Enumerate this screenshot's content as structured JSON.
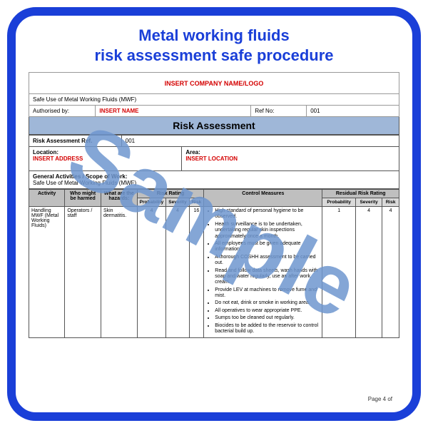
{
  "title_line1": "Metal working fluids",
  "title_line2": "risk assessment safe procedure",
  "header": {
    "company_placeholder": "INSERT COMPANY NAME/LOGO",
    "doc_title": "Safe Use of Metal Working Fluids (MWF)",
    "authorised_label": "Authorised by:",
    "authorised_value": "INSERT NAME",
    "ref_label": "Ref No:",
    "ref_value": "001"
  },
  "banner": "Risk Assessment",
  "meta": {
    "ra_ref_label": "Risk Assessment Ref.",
    "ra_ref_value": "001",
    "location_label": "Location:",
    "location_value": "INSERT ADDRESS",
    "area_label": "Area:",
    "area_value": "INSERT LOCATION",
    "scope_label": "General Activities / Scope of Work:",
    "scope_value": "Safe Use of Metal Working Fluids (MWF)"
  },
  "columns": {
    "activity": "Activity",
    "who": "Who might be harmed",
    "hazards": "What are the hazards:",
    "risk_rating": "Risk Rating",
    "measures": "Control Measures",
    "residual": "Residual Risk Rating",
    "prob": "Probability",
    "sev": "Severity",
    "risk": "Risk"
  },
  "row": {
    "activity": "Handling MWF (Metal Working Fluids)",
    "who": "Operators / staff",
    "hazard": "Skin dermatitis.",
    "p1": "4",
    "s1": "4",
    "r1": "16",
    "p2": "1",
    "s2": "4",
    "r2": "4",
    "bullets": [
      "High standard of personal hygiene to be observed.",
      "Health surveillance is to be undertaken, undertaking regular skin inspections approximately once a month.",
      "All employees must be given adequate information.",
      "A thorough COSHH assessment to be carried out.",
      "Read and follow data sheets, wash hands with soap and water regularly, use an after work cream.",
      "Provide LEV at machines to remove fume and mist.",
      "Do not eat, drink or smoke in working area.",
      "All operatives to wear appropriate PPE.",
      "Sumps too be cleaned out regularly.",
      "Biocides to be added to the reservoir to control bacterial build up."
    ]
  },
  "watermark": "Sample",
  "page_footer": "Page 4 of",
  "colors": {
    "border": "#1a3fd8",
    "title": "#1a3fd8",
    "red": "#d40000",
    "banner_bg": "#9fb7d8",
    "th_bg": "#bfbfbf",
    "watermark": "#6f97d0"
  }
}
